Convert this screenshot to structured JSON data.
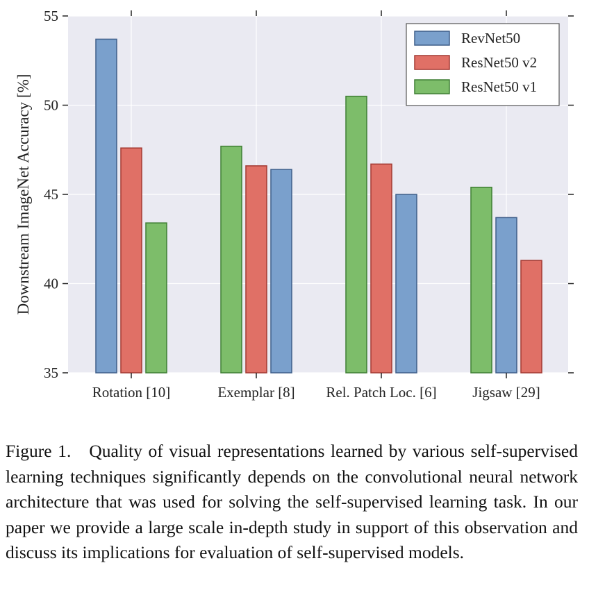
{
  "chart_data": {
    "type": "bar",
    "categories": [
      "Rotation [10]",
      "Exemplar [8]",
      "Rel. Patch Loc. [6]",
      "Jigsaw [29]"
    ],
    "series": [
      {
        "name": "RevNet50",
        "color": "#7aa0cc",
        "stroke": "#3f5f8a",
        "values": [
          53.7,
          46.4,
          45.0,
          43.7
        ]
      },
      {
        "name": "ResNet50 v2",
        "color": "#e07066",
        "stroke": "#a33a33",
        "values": [
          47.6,
          46.6,
          46.7,
          41.3
        ]
      },
      {
        "name": "ResNet50 v1",
        "color": "#7dbd6a",
        "stroke": "#3f7f34",
        "values": [
          43.4,
          47.7,
          50.5,
          45.4
        ]
      }
    ],
    "bar_order": [
      [
        "RevNet50",
        "ResNet50 v2",
        "ResNet50 v1"
      ],
      [
        "ResNet50 v1",
        "ResNet50 v2",
        "RevNet50"
      ],
      [
        "ResNet50 v1",
        "ResNet50 v2",
        "RevNet50"
      ],
      [
        "ResNet50 v1",
        "RevNet50",
        "ResNet50 v2"
      ]
    ],
    "ylabel": "Downstream ImageNet Accuracy [%]",
    "xlabel": "",
    "ylim": [
      35,
      55
    ],
    "yticks": [
      "35",
      "40",
      "45",
      "50",
      "55"
    ],
    "grid": true,
    "legend_position": "top-right",
    "background_color": "#eaeaf2"
  },
  "caption": {
    "label": "Figure 1.",
    "text": "Quality of visual representations learned by various self-supervised learning techniques significantly depends on the convolutional neural network architecture that was used for solving the self-supervised learning task. In our paper we provide a large scale in-depth study in support of this observation and discuss its implications for evaluation of self-supervised models."
  }
}
